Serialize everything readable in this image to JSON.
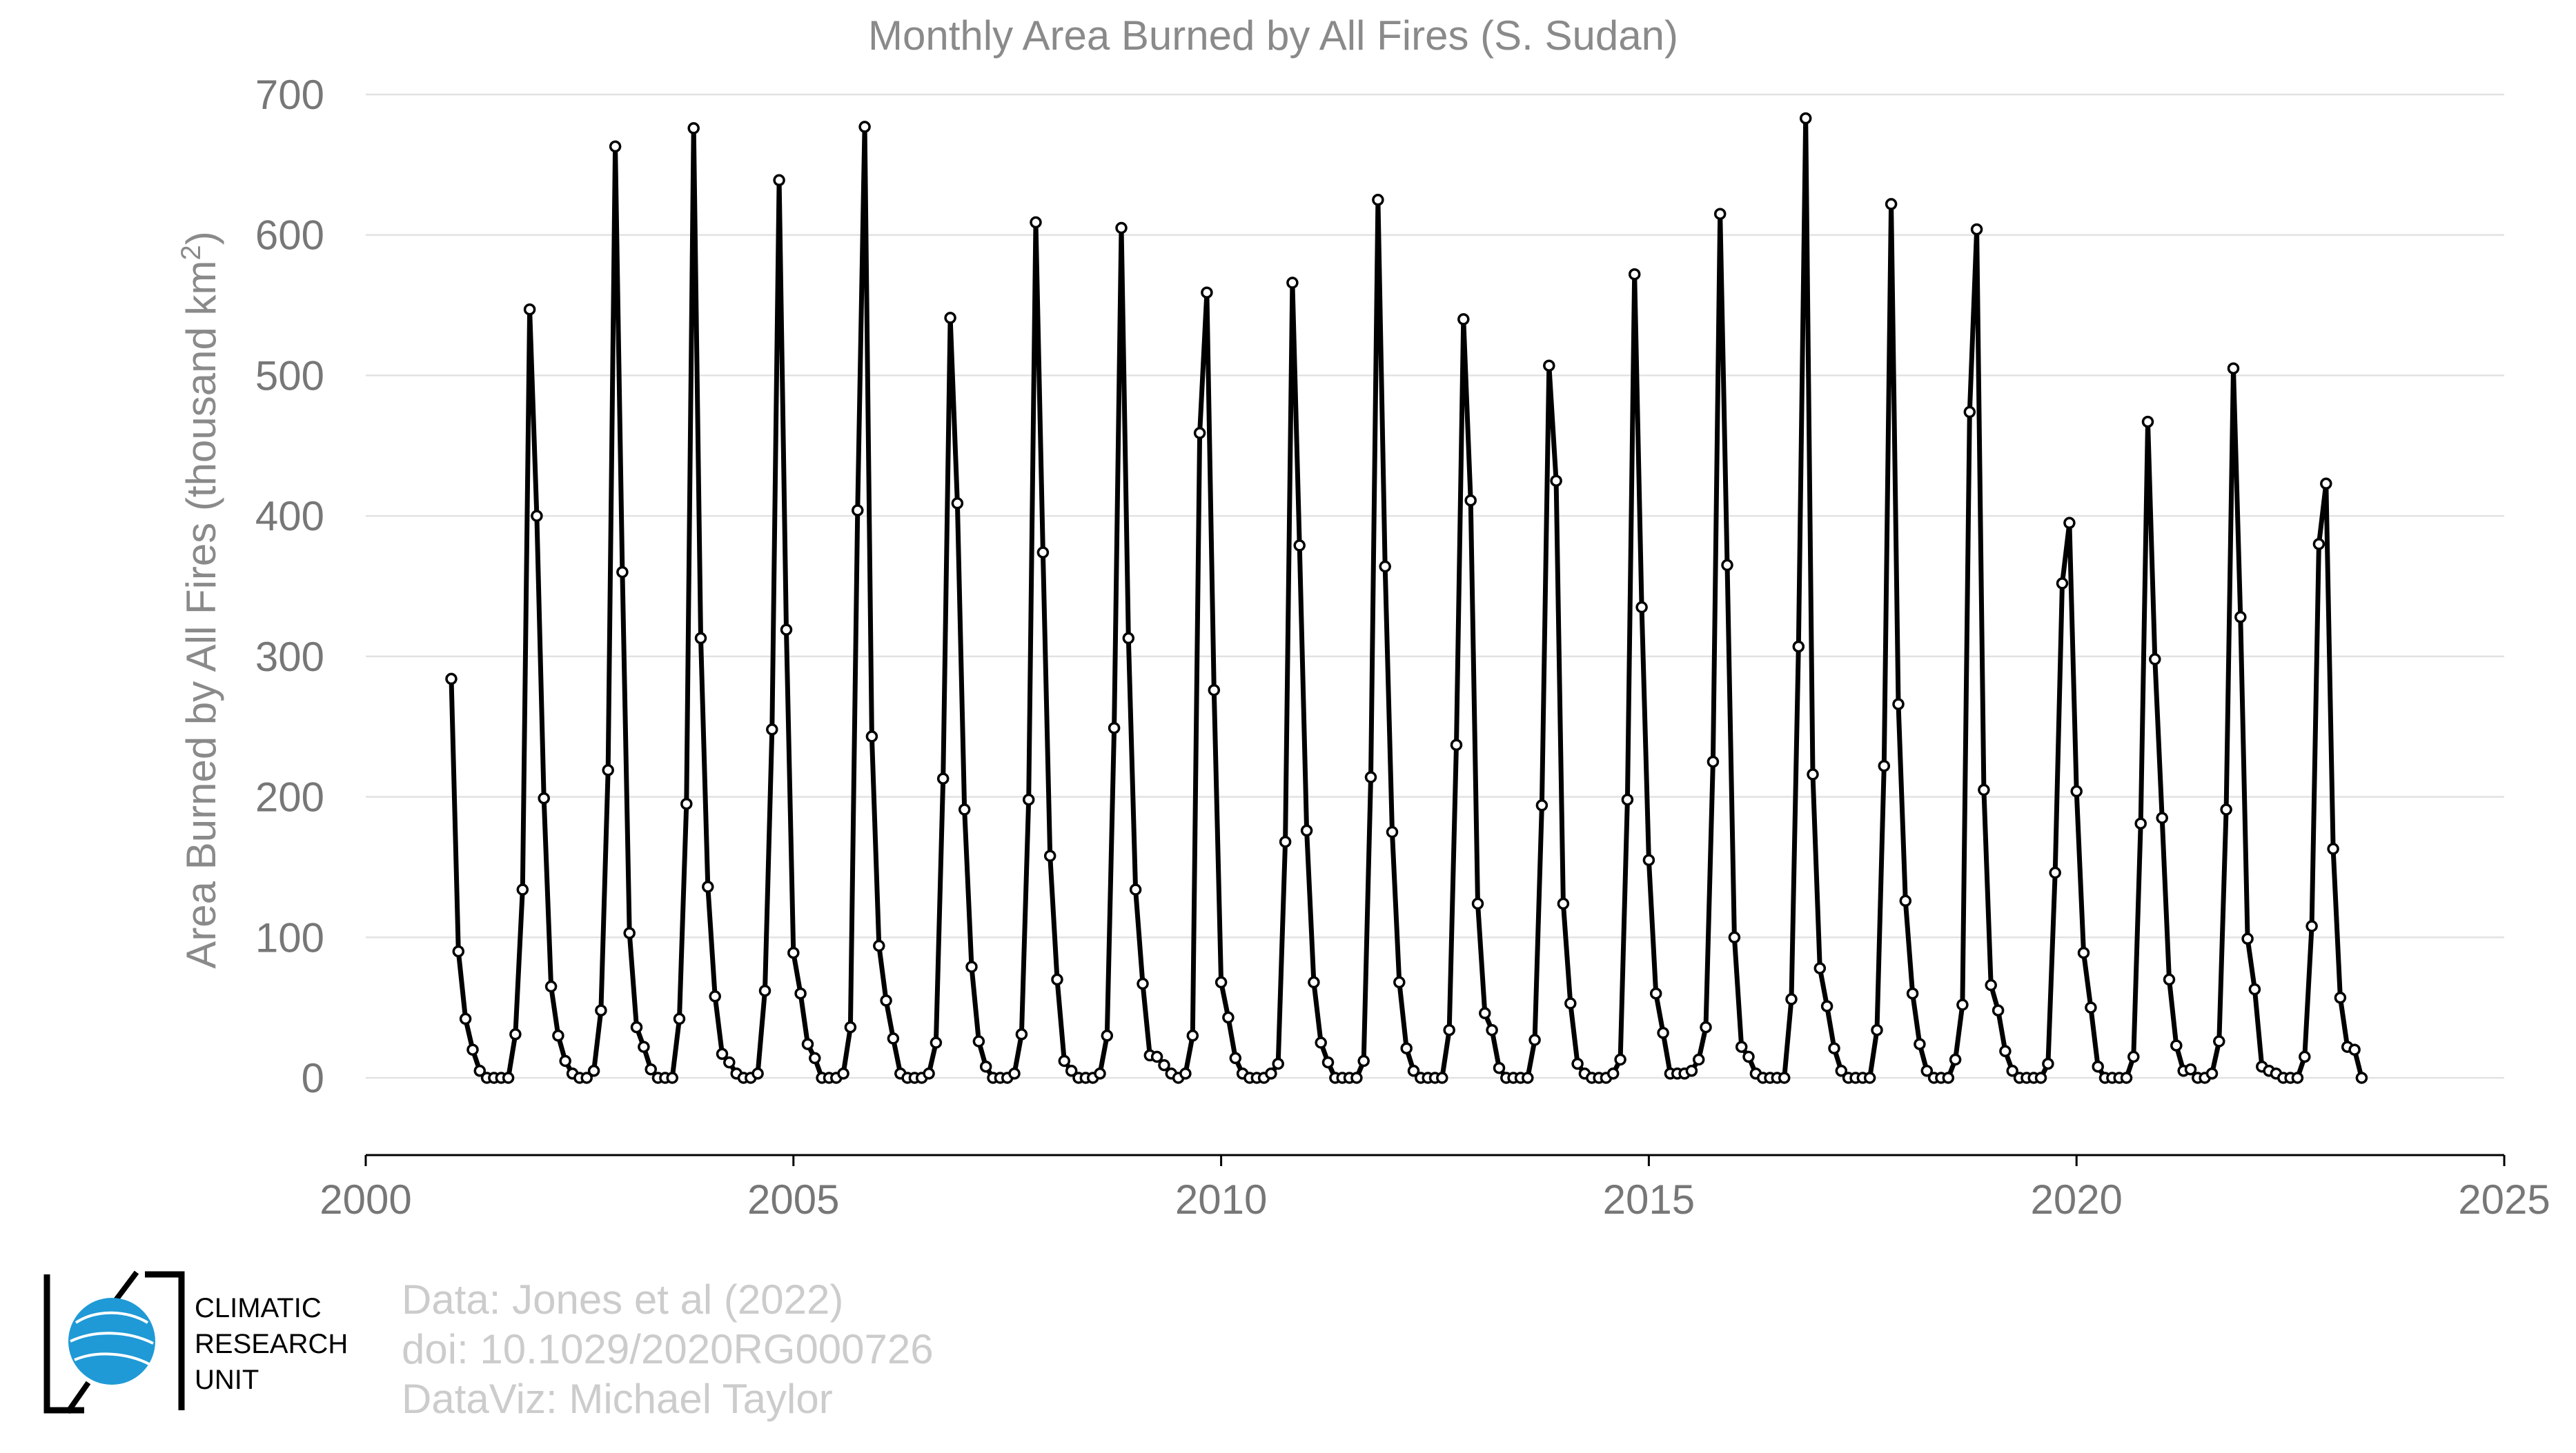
{
  "chart_data": {
    "type": "line",
    "title": "Monthly Area Burned by All Fires (S. Sudan)",
    "ylabel_main": "Area Burned by All Fires (thousand km",
    "ylabel_sup": "2",
    "ylabel_close": ")",
    "xlabel": "",
    "xlim": [
      2000,
      2025
    ],
    "ylim": [
      -55,
      700
    ],
    "xticks": [
      2000,
      2005,
      2010,
      2015,
      2020,
      2025
    ],
    "yticks": [
      0,
      100,
      200,
      300,
      400,
      500,
      600,
      700
    ],
    "grid": true,
    "legend": "none",
    "line_color": "#000000",
    "marker": "open-circle",
    "series": [
      {
        "start_year": 2001,
        "values": [
          284,
          90,
          42,
          20,
          5,
          0,
          0,
          0,
          0,
          31,
          134,
          547,
          400,
          199,
          65,
          30,
          12,
          3,
          0,
          0,
          5,
          48,
          219,
          663,
          360,
          103,
          36,
          22,
          6,
          0,
          0,
          0,
          42,
          195,
          676,
          313,
          136,
          58,
          17,
          11,
          3,
          0,
          0,
          3,
          62,
          248,
          639,
          319,
          89,
          60,
          24,
          14,
          0,
          0,
          0,
          3,
          36,
          404,
          677,
          243,
          94,
          55,
          28,
          3,
          0,
          0,
          0,
          3,
          25,
          213,
          541,
          409,
          191,
          79,
          26,
          8,
          0,
          0,
          0,
          3,
          31,
          198,
          609,
          374,
          158,
          70,
          12,
          5,
          0,
          0,
          0,
          3,
          30,
          249,
          605,
          313,
          134,
          67,
          16,
          15,
          9,
          3,
          0,
          3,
          30,
          459,
          559,
          276,
          68,
          43,
          14,
          3,
          0,
          0,
          0,
          3,
          10,
          168,
          566,
          379,
          176,
          68,
          25,
          11,
          0,
          0,
          0,
          0,
          12,
          214,
          625,
          364,
          175,
          68,
          21,
          5,
          0,
          0,
          0,
          0,
          34,
          237,
          540,
          411,
          124,
          46,
          34,
          7,
          0,
          0,
          0,
          0,
          27,
          194,
          507,
          425,
          124,
          53,
          10,
          3,
          0,
          0,
          0,
          3,
          13,
          198,
          572,
          335,
          155,
          60,
          32,
          3,
          3,
          3,
          5,
          13,
          36,
          225,
          615,
          365,
          100,
          22,
          15,
          3,
          0,
          0,
          0,
          0,
          56,
          307,
          683,
          216,
          78,
          51,
          21,
          5,
          0,
          0,
          0,
          0,
          34,
          222,
          622,
          266,
          126,
          60,
          24,
          5,
          0,
          0,
          0,
          13,
          52,
          474,
          604,
          205,
          66,
          48,
          19,
          5,
          0,
          0,
          0,
          0,
          10,
          146,
          352,
          395,
          204,
          89,
          50,
          8,
          0,
          0,
          0,
          0,
          15,
          181,
          467,
          298,
          185,
          70,
          23,
          5,
          6,
          0,
          0,
          3,
          26,
          191,
          505,
          328,
          99,
          63,
          8,
          5,
          3,
          0,
          0,
          0,
          15,
          108,
          380,
          423,
          163,
          57,
          22,
          20,
          0
        ]
      }
    ],
    "credits": [
      "Data: Jones et al (2022)",
      "doi: 10.1029/2020RG000726",
      "DataViz: Michael Taylor"
    ],
    "logo_text": [
      "CLIMATIC",
      "RESEARCH",
      "UNIT"
    ]
  }
}
